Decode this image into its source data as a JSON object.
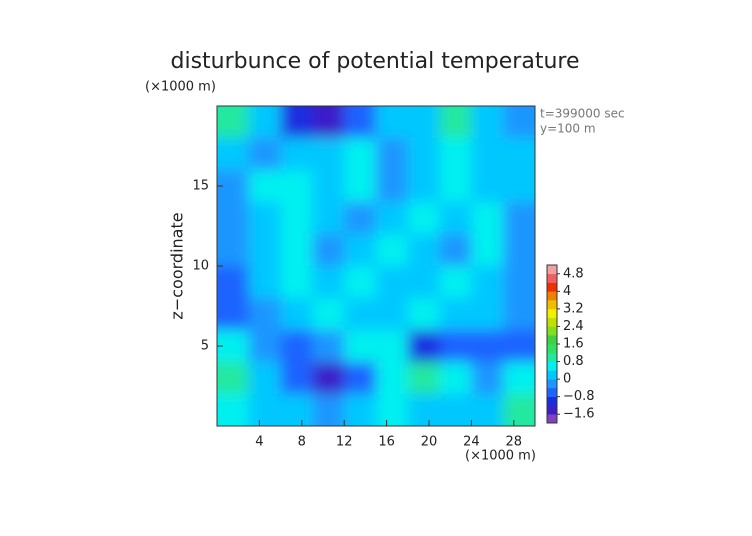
{
  "chart_data": {
    "type": "heatmap",
    "title": "disturbunce of potential temperature",
    "y_unit": "(×1000 m)",
    "x_unit": "(×1000 m)",
    "ylabel": "z−coordinate",
    "annotations": [
      "t=399000 sec",
      "y=100 m"
    ],
    "xlim": [
      0,
      30
    ],
    "ylim": [
      0,
      20
    ],
    "xticks": [
      4,
      8,
      12,
      16,
      20,
      24,
      28
    ],
    "yticks": [
      5,
      10,
      15
    ],
    "values": [
      [
        1.0,
        0.2,
        -1.2,
        -1.4,
        -0.6,
        0.2,
        0.2,
        1.0,
        0.2,
        -0.4
      ],
      [
        0.2,
        -0.2,
        0,
        0.2,
        0.4,
        -0.4,
        0.2,
        0.4,
        0,
        0.2
      ],
      [
        -0.2,
        0.4,
        0.4,
        0.2,
        0.4,
        -0.2,
        0.2,
        0.4,
        0.2,
        0
      ],
      [
        -0.2,
        0.2,
        0.4,
        0.2,
        -0.2,
        0.2,
        0.4,
        0.2,
        0.4,
        -0.2
      ],
      [
        -0.4,
        0.2,
        0.4,
        -0.2,
        0.2,
        0.4,
        0.2,
        -0.2,
        0.4,
        -0.2
      ],
      [
        -0.6,
        0.2,
        0.4,
        0.2,
        0.4,
        0.2,
        0.2,
        0.4,
        0.2,
        -0.4
      ],
      [
        -0.6,
        -0.2,
        0.2,
        0.4,
        0.2,
        0.2,
        0.4,
        0.2,
        0,
        -0.2
      ],
      [
        0.6,
        -0.2,
        -0.6,
        -0.4,
        0.6,
        0.6,
        -1.0,
        -0.6,
        -0.6,
        -0.6
      ],
      [
        1.0,
        0.2,
        -0.6,
        -1.4,
        -0.8,
        0.4,
        0.8,
        0.4,
        -0.2,
        0.6
      ],
      [
        0.4,
        0.2,
        0.2,
        -0.2,
        0.2,
        0.4,
        0.2,
        0.2,
        0.2,
        0.8
      ]
    ],
    "levels": [
      -2.0,
      -1.6,
      -1.2,
      -0.8,
      -0.4,
      0,
      0.4,
      0.8,
      1.2,
      1.6,
      2.0,
      2.4,
      2.8,
      3.2,
      3.6,
      4.0,
      4.4,
      4.8,
      5.2
    ],
    "colors": [
      "#8040c0",
      "#3a1ec8",
      "#1a2ee0",
      "#1e64ff",
      "#1e96ff",
      "#00c8ff",
      "#00f0f0",
      "#20e8a0",
      "#30e060",
      "#40d040",
      "#80e020",
      "#c0e000",
      "#f0f000",
      "#f0c000",
      "#f08000",
      "#f03000",
      "#f06060",
      "#f0a0a0"
    ],
    "colorbar_ticks": [
      4.8,
      4,
      3.2,
      2.4,
      1.6,
      0.8,
      0,
      {
        "value": -0.8,
        "label": "−0.8"
      },
      {
        "value": -1.6,
        "label": "−1.6"
      }
    ]
  }
}
